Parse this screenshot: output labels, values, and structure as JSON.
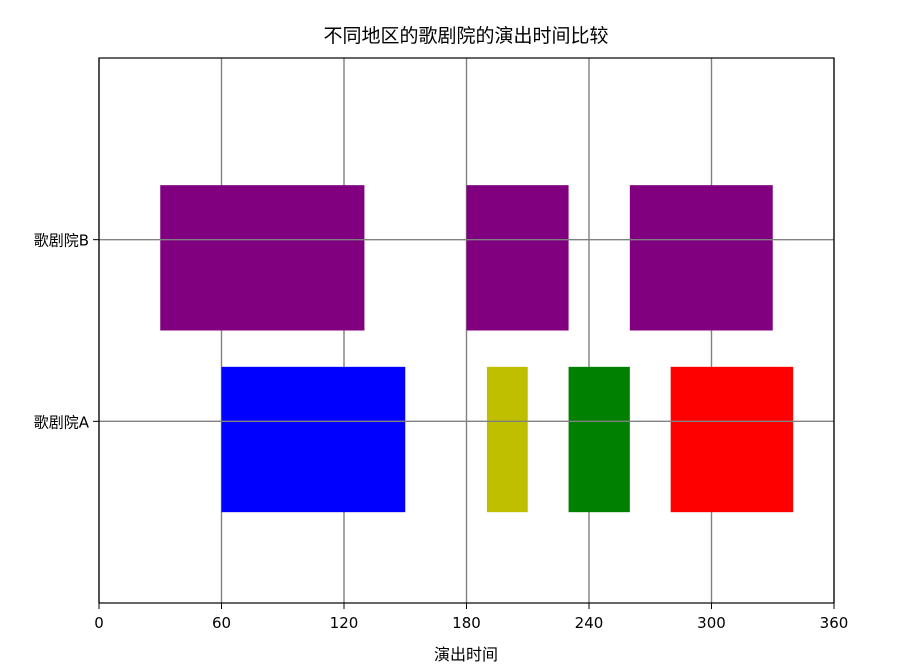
{
  "chart_data": {
    "type": "broken_barh",
    "title": "不同地区的歌剧院的演出时间比较",
    "xlabel": "演出时间",
    "ylabel": "",
    "xlim": [
      0,
      360
    ],
    "ylim": [
      0,
      3
    ],
    "xticks": [
      0,
      60,
      120,
      180,
      240,
      300,
      360
    ],
    "grid": true,
    "categories": [
      {
        "label": "歌剧院A",
        "y": 1
      },
      {
        "label": "歌剧院B",
        "y": 2
      }
    ],
    "bars": [
      {
        "category": "歌剧院A",
        "start": 60,
        "duration": 90,
        "y_low": 0.5,
        "y_high": 1.3,
        "color": "#0000ff"
      },
      {
        "category": "歌剧院A",
        "start": 190,
        "duration": 20,
        "y_low": 0.5,
        "y_high": 1.3,
        "color": "#bfbf00"
      },
      {
        "category": "歌剧院A",
        "start": 230,
        "duration": 30,
        "y_low": 0.5,
        "y_high": 1.3,
        "color": "#008000"
      },
      {
        "category": "歌剧院A",
        "start": 280,
        "duration": 60,
        "y_low": 0.5,
        "y_high": 1.3,
        "color": "#ff0000"
      },
      {
        "category": "歌剧院B",
        "start": 30,
        "duration": 100,
        "y_low": 1.5,
        "y_high": 2.3,
        "color": "#800080"
      },
      {
        "category": "歌剧院B",
        "start": 180,
        "duration": 50,
        "y_low": 1.5,
        "y_high": 2.3,
        "color": "#800080"
      },
      {
        "category": "歌剧院B",
        "start": 260,
        "duration": 70,
        "y_low": 1.5,
        "y_high": 2.3,
        "color": "#800080"
      }
    ]
  }
}
